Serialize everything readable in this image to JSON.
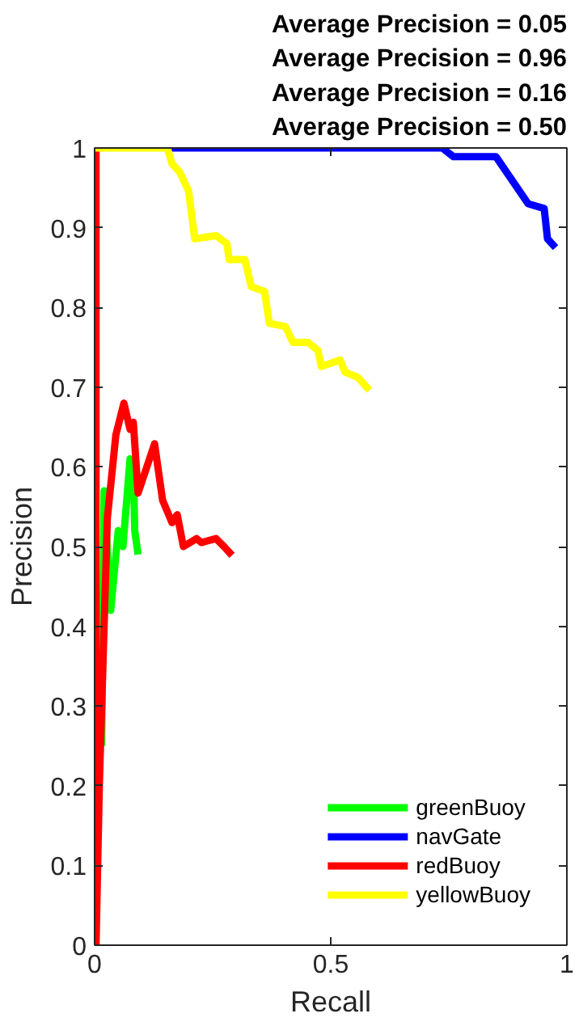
{
  "chart_data": {
    "type": "line",
    "title": "Average Precision = 0.05\nAverage Precision = 0.96\nAverage Precision = 0.16\nAverage Precision = 0.50",
    "xlabel": "Recall",
    "ylabel": "Precision",
    "xlim": [
      0,
      1
    ],
    "ylim": [
      0,
      1
    ],
    "xticks": [
      0,
      0.5,
      1
    ],
    "yticks": [
      0,
      0.1,
      0.2,
      0.3,
      0.4,
      0.5,
      0.6,
      0.7,
      0.8,
      0.9,
      1
    ],
    "grid": false,
    "legend": "bottom right",
    "marker": "none",
    "line_style": "solid",
    "series": [
      {
        "name": "greenBuoy",
        "color": "#00ff00",
        "x": [
          0.015,
          0.02,
          0.034,
          0.05,
          0.06,
          0.075,
          0.082,
          0.085,
          0.092
        ],
        "values": [
          0.25,
          0.57,
          0.42,
          0.52,
          0.5,
          0.61,
          0.6,
          0.52,
          0.49
        ]
      },
      {
        "name": "navGate",
        "color": "#0000ff",
        "x": [
          0.15,
          0.736,
          0.76,
          0.85,
          0.918,
          0.952,
          0.959,
          0.976
        ],
        "values": [
          1,
          1,
          0.989,
          0.989,
          0.93,
          0.924,
          0.886,
          0.875
        ]
      },
      {
        "name": "redBuoy",
        "color": "#ff0000",
        "x": [
          0.003,
          0.003,
          0.01,
          0.027,
          0.045,
          0.062,
          0.075,
          0.082,
          0.092,
          0.127,
          0.144,
          0.164,
          0.175,
          0.188,
          0.216,
          0.226,
          0.257,
          0.274,
          0.291
        ],
        "values": [
          1,
          0,
          0.2,
          0.536,
          0.64,
          0.68,
          0.647,
          0.656,
          0.567,
          0.629,
          0.558,
          0.53,
          0.54,
          0.5,
          0.51,
          0.505,
          0.51,
          0.5,
          0.489
        ]
      },
      {
        "name": "yellowBuoy",
        "color": "#ffff00",
        "x": [
          0,
          0.154,
          0.164,
          0.18,
          0.199,
          0.212,
          0.257,
          0.28,
          0.285,
          0.318,
          0.332,
          0.36,
          0.37,
          0.404,
          0.42,
          0.452,
          0.473,
          0.48,
          0.52,
          0.53,
          0.558,
          0.582
        ],
        "values": [
          1,
          1,
          0.98,
          0.97,
          0.946,
          0.886,
          0.89,
          0.88,
          0.86,
          0.86,
          0.826,
          0.82,
          0.78,
          0.776,
          0.756,
          0.756,
          0.746,
          0.726,
          0.734,
          0.719,
          0.712,
          0.696
        ]
      }
    ]
  }
}
